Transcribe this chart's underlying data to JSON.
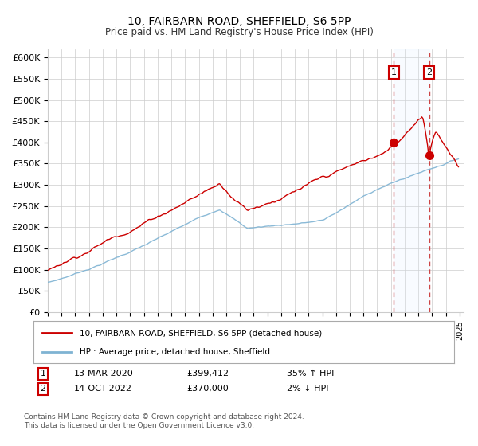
{
  "title": "10, FAIRBARN ROAD, SHEFFIELD, S6 5PP",
  "subtitle": "Price paid vs. HM Land Registry's House Price Index (HPI)",
  "legend_label_red": "10, FAIRBARN ROAD, SHEFFIELD, S6 5PP (detached house)",
  "legend_label_blue": "HPI: Average price, detached house, Sheffield",
  "annotation1": {
    "label": "1",
    "date": "13-MAR-2020",
    "price": "£399,412",
    "pct": "35% ↑ HPI"
  },
  "annotation2": {
    "label": "2",
    "date": "14-OCT-2022",
    "price": "£370,000",
    "pct": "2% ↓ HPI"
  },
  "footer": "Contains HM Land Registry data © Crown copyright and database right 2024.\nThis data is licensed under the Open Government Licence v3.0.",
  "red_color": "#cc0000",
  "blue_color": "#7fb3d3",
  "shaded_color": "#ddeeff",
  "grid_color": "#cccccc",
  "background_color": "#ffffff",
  "ylim": [
    0,
    620000
  ],
  "yticks": [
    0,
    50000,
    100000,
    150000,
    200000,
    250000,
    300000,
    350000,
    400000,
    450000,
    500000,
    550000,
    600000
  ],
  "sale1_year": 2020.21,
  "sale1_price": 399412,
  "sale2_year": 2022.79,
  "sale2_price": 370000
}
